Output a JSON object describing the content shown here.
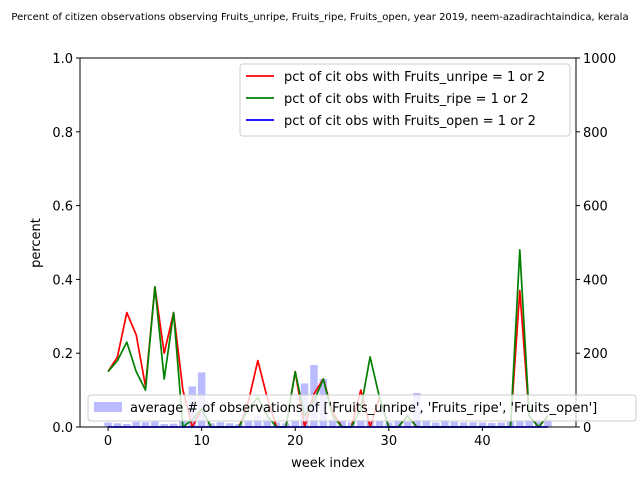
{
  "chart_data": {
    "type": "line",
    "title": "Percent of citizen observations observing Fruits_unripe, Fruits_ripe, Fruits_open, year 2019, neem-azadirachtaindica, kerala",
    "xlabel": "week index",
    "ylabel": "percent",
    "xlim": [
      -3,
      50
    ],
    "ylim": [
      0,
      1.0
    ],
    "y2lim": [
      0,
      1000
    ],
    "xticks": [
      0,
      10,
      20,
      30,
      40
    ],
    "yticks": [
      0.0,
      0.2,
      0.4,
      0.6,
      0.8,
      1.0
    ],
    "y2ticks": [
      0,
      200,
      400,
      600,
      800,
      1000
    ],
    "x": [
      0,
      1,
      2,
      3,
      4,
      5,
      6,
      7,
      8,
      9,
      10,
      11,
      12,
      13,
      14,
      15,
      16,
      17,
      18,
      19,
      20,
      21,
      22,
      23,
      24,
      25,
      26,
      27,
      28,
      29,
      30,
      31,
      32,
      33,
      34,
      35,
      36,
      37,
      38,
      39,
      40,
      41,
      42,
      43,
      44,
      45,
      46,
      47
    ],
    "series": [
      {
        "name": "pct of cit obs with Fruits_unripe = 1 or 2",
        "color": "#ff0000",
        "values": [
          0.15,
          0.19,
          0.31,
          0.25,
          0.11,
          0.38,
          0.2,
          0.31,
          0.1,
          0.0,
          0.05,
          0.0,
          0.0,
          0.0,
          0.0,
          0.07,
          0.18,
          0.08,
          0.0,
          0.0,
          0.15,
          0.0,
          0.09,
          0.13,
          0.04,
          0.0,
          0.0,
          0.1,
          0.0,
          0.08,
          0.0,
          0.0,
          0.03,
          0.0,
          0.0,
          0.0,
          0.0,
          0.0,
          0.0,
          0.0,
          0.0,
          0.0,
          0.0,
          0.0,
          0.37,
          0.03,
          0.0,
          0.03
        ]
      },
      {
        "name": "pct of cit obs with Fruits_ripe = 1 or 2",
        "color": "#008000",
        "values": [
          0.15,
          0.18,
          0.23,
          0.15,
          0.1,
          0.38,
          0.13,
          0.31,
          0.0,
          0.02,
          0.05,
          0.0,
          0.0,
          0.0,
          0.0,
          0.05,
          0.08,
          0.03,
          0.0,
          0.0,
          0.15,
          0.03,
          0.07,
          0.13,
          0.03,
          0.0,
          0.0,
          0.05,
          0.19,
          0.08,
          0.0,
          0.0,
          0.03,
          0.0,
          0.0,
          0.0,
          0.0,
          0.0,
          0.0,
          0.0,
          0.0,
          0.0,
          0.0,
          0.0,
          0.48,
          0.03,
          0.0,
          0.03
        ]
      },
      {
        "name": "pct of cit obs with Fruits_open = 1 or 2",
        "color": "#0000ff",
        "values": [
          0,
          0,
          0,
          0,
          0,
          0,
          0,
          0,
          0,
          0,
          0,
          0,
          0,
          0,
          0,
          0,
          0,
          0,
          0,
          0,
          0,
          0,
          0,
          0,
          0,
          0,
          0,
          0,
          0,
          0,
          0,
          0,
          0,
          0,
          0,
          0,
          0,
          0,
          0,
          0,
          0,
          0,
          0,
          0,
          0,
          0,
          0,
          0
        ]
      }
    ],
    "bars": {
      "name": "average # of observations of ['Fruits_unripe', 'Fruits_ripe', 'Fruits_open']",
      "color": "#bbbbff",
      "axis": "right",
      "values": [
        12,
        10,
        8,
        14,
        13,
        15,
        8,
        9,
        20,
        110,
        148,
        10,
        13,
        10,
        8,
        20,
        30,
        25,
        12,
        10,
        20,
        118,
        168,
        130,
        22,
        15,
        12,
        20,
        18,
        15,
        12,
        18,
        14,
        92,
        20,
        12,
        15,
        14,
        12,
        13,
        12,
        11,
        12,
        14,
        16,
        20,
        14,
        22
      ]
    },
    "legend_upper": "top-right",
    "legend_lower": "lower-right",
    "grid": false
  }
}
